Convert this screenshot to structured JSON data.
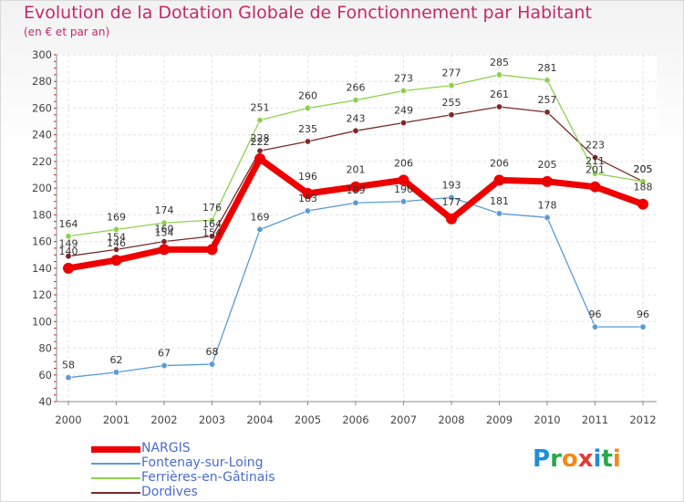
{
  "title": "Evolution de la Dotation Globale de Fonctionnement par Habitant",
  "subtitle": "(en € et par an)",
  "brand": {
    "text": "Proxiti",
    "letters": [
      {
        "ch": "P",
        "color": "#1e8fd8"
      },
      {
        "ch": "r",
        "color": "#2aa84a"
      },
      {
        "ch": "o",
        "color": "#f08a1c"
      },
      {
        "ch": "x",
        "color": "#e33a3a"
      },
      {
        "ch": "i",
        "color": "#1e8fd8"
      },
      {
        "ch": "t",
        "color": "#2aa84a"
      },
      {
        "ch": "i",
        "color": "#f08a1c"
      }
    ]
  },
  "chart_data": {
    "type": "line",
    "title": "Evolution de la Dotation Globale de Fonctionnement par Habitant",
    "subtitle": "(en € et par an)",
    "xlabel": "",
    "ylabel": "",
    "ylim": [
      40,
      300
    ],
    "yticks": [
      40,
      60,
      80,
      100,
      120,
      140,
      160,
      180,
      200,
      220,
      240,
      260,
      280,
      300
    ],
    "grid": true,
    "legend": "bottom-left",
    "categories": [
      "2000",
      "2001",
      "2002",
      "2003",
      "2004",
      "2005",
      "2006",
      "2007",
      "2008",
      "2009",
      "2010",
      "2011",
      "2012"
    ],
    "series": [
      {
        "name": "NARGIS",
        "color": "#ee0000",
        "values": [
          140,
          146,
          154,
          154,
          222,
          196,
          201,
          206,
          177,
          206,
          205,
          201,
          188
        ]
      },
      {
        "name": "Fontenay-sur-Loing",
        "color": "#5b9bd5",
        "values": [
          58,
          62,
          67,
          68,
          169,
          183,
          189,
          190,
          193,
          181,
          178,
          96,
          96
        ]
      },
      {
        "name": "Ferrières-en-Gâtinais",
        "color": "#8fd14f",
        "values": [
          164,
          169,
          174,
          176,
          251,
          260,
          266,
          273,
          277,
          285,
          281,
          211,
          205
        ]
      },
      {
        "name": "Dordives",
        "color": "#7a2a2a",
        "values": [
          149,
          154,
          160,
          164,
          228,
          235,
          243,
          249,
          255,
          261,
          257,
          223,
          205
        ]
      }
    ]
  }
}
